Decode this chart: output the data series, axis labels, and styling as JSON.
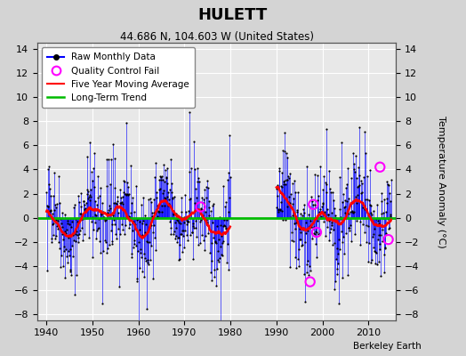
{
  "title": "HULETT",
  "subtitle": "44.686 N, 104.603 W (United States)",
  "ylabel": "Temperature Anomaly (°C)",
  "watermark": "Berkeley Earth",
  "xlim": [
    1938,
    2016
  ],
  "ylim": [
    -8.5,
    14.5
  ],
  "yticks": [
    -8,
    -6,
    -4,
    -2,
    0,
    2,
    4,
    6,
    8,
    10,
    12,
    14
  ],
  "xticks": [
    1940,
    1950,
    1960,
    1970,
    1980,
    1990,
    2000,
    2010
  ],
  "bg_color": "#d4d4d4",
  "plot_bg_color": "#e8e8e8",
  "grid_color": "#ffffff",
  "raw_color": "#0000ff",
  "dot_color": "#000000",
  "ma_color": "#ff0000",
  "trend_color": "#00bb00",
  "qc_color": "#ff00ff",
  "seed": 42,
  "gap_start": 1980,
  "gap_end": 1990,
  "data_start": 1940,
  "data_end": 2015
}
